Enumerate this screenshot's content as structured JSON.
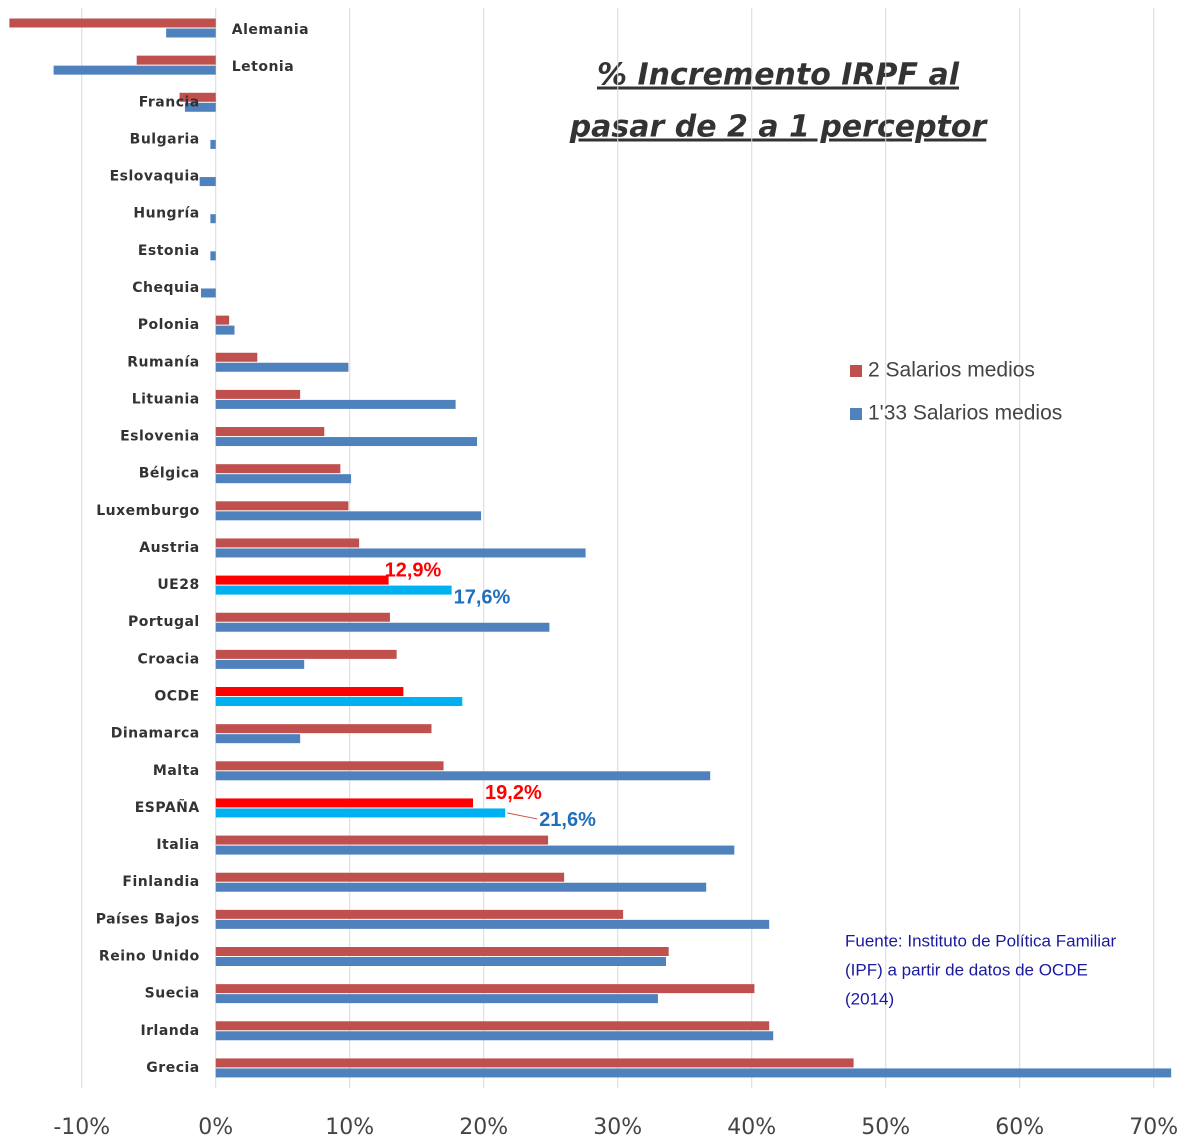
{
  "chart_data": {
    "type": "hbar",
    "title": [
      "% Incremento IRPF al",
      "pasar de 2 a 1 perceptor"
    ],
    "categories": [
      "Alemania",
      "Letonia",
      "Francia",
      "Bulgaria",
      "Eslovaquia",
      "Hungría",
      "Estonia",
      "Chequia",
      "Polonia",
      "Rumanía",
      "Lituania",
      "Eslovenia",
      "Bélgica",
      "Luxemburgo",
      "Austria",
      "UE28",
      "Portugal",
      "Croacia",
      "OCDE",
      "Dinamarca",
      "Malta",
      "ESPAÑA",
      "Italia",
      "Finlandia",
      "Países Bajos",
      "Reino Unido",
      "Suecia",
      "Irlanda",
      "Grecia"
    ],
    "series": [
      {
        "name": "2 Salarios medios",
        "color": "#c0504d",
        "colors": [
          "#c0504d",
          "#c0504d",
          "#c0504d",
          "#c0504d",
          "#c0504d",
          "#c0504d",
          "#c0504d",
          "#c0504d",
          "#c0504d",
          "#c0504d",
          "#c0504d",
          "#c0504d",
          "#c0504d",
          "#c0504d",
          "#c0504d",
          "#ff0000",
          "#c0504d",
          "#c0504d",
          "#ff0000",
          "#c0504d",
          "#c0504d",
          "#ff0000",
          "#c0504d",
          "#c0504d",
          "#c0504d",
          "#c0504d",
          "#c0504d",
          "#c0504d",
          "#c0504d"
        ],
        "label_color": "#ff0000",
        "values": [
          -15.4,
          -5.9,
          -2.7,
          0,
          0,
          0,
          0,
          0,
          1.0,
          3.1,
          6.3,
          8.1,
          9.3,
          9.9,
          10.7,
          12.9,
          13.0,
          13.5,
          14.0,
          16.1,
          17.0,
          19.2,
          24.8,
          26.0,
          30.4,
          33.8,
          40.2,
          41.3,
          47.6
        ],
        "value_labels": [
          null,
          null,
          null,
          null,
          null,
          null,
          null,
          null,
          null,
          null,
          null,
          null,
          null,
          null,
          null,
          "12,9%",
          null,
          null,
          null,
          null,
          null,
          "19,2%",
          null,
          null,
          null,
          null,
          null,
          null,
          null
        ]
      },
      {
        "name": "1'33 Salarios medios",
        "color": "#4f81bd",
        "colors": [
          "#4f81bd",
          "#4f81bd",
          "#4f81bd",
          "#4f81bd",
          "#4f81bd",
          "#4f81bd",
          "#4f81bd",
          "#4f81bd",
          "#4f81bd",
          "#4f81bd",
          "#4f81bd",
          "#4f81bd",
          "#4f81bd",
          "#4f81bd",
          "#4f81bd",
          "#00b0f0",
          "#4f81bd",
          "#4f81bd",
          "#00b0f0",
          "#4f81bd",
          "#4f81bd",
          "#00b0f0",
          "#4f81bd",
          "#4f81bd",
          "#4f81bd",
          "#4f81bd",
          "#4f81bd",
          "#4f81bd",
          "#4f81bd"
        ],
        "label_color": "#1f6fbf",
        "values": [
          -3.7,
          -12.1,
          -2.3,
          -0.4,
          -1.2,
          -0.4,
          -0.4,
          -1.1,
          1.4,
          9.9,
          17.9,
          19.5,
          10.1,
          19.8,
          27.6,
          17.6,
          24.9,
          6.6,
          18.4,
          6.3,
          36.9,
          21.6,
          38.7,
          36.6,
          41.3,
          33.6,
          33.0,
          41.6,
          71.3
        ],
        "value_labels": [
          null,
          null,
          null,
          null,
          null,
          null,
          null,
          null,
          null,
          null,
          null,
          null,
          null,
          null,
          null,
          "17,6%",
          null,
          null,
          null,
          null,
          null,
          "21,6%",
          null,
          null,
          null,
          null,
          null,
          null,
          null
        ]
      }
    ],
    "xlim": [
      -16.1,
      73.6
    ],
    "xticks": [
      {
        "value": -10,
        "label": "-10%"
      },
      {
        "value": 0,
        "label": "0%"
      },
      {
        "value": 10,
        "label": "10%"
      },
      {
        "value": 20,
        "label": "20%"
      },
      {
        "value": 30,
        "label": "30%"
      },
      {
        "value": 40,
        "label": "40%"
      },
      {
        "value": 50,
        "label": "50%"
      },
      {
        "value": 60,
        "label": "60%"
      },
      {
        "value": 70,
        "label": "70%"
      }
    ],
    "grid": true,
    "legend": "right",
    "annotation": [
      "Fuente: Instituto de Política Familiar",
      "(IPF) a partir de datos de OCDE",
      "(2014)"
    ]
  }
}
